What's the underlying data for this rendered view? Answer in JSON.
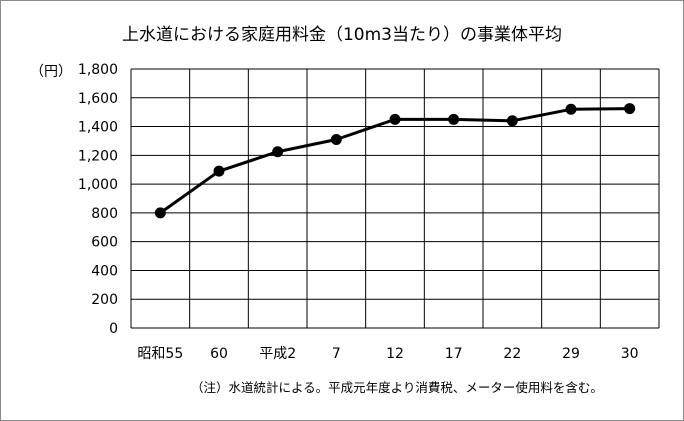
{
  "chart_data": {
    "type": "line",
    "title": "上水道における家庭用料金（10m3当たり）の事業体平均",
    "unit_label": "（円）",
    "categories": [
      "昭和55",
      "60",
      "平成2",
      "7",
      "12",
      "17",
      "22",
      "29",
      "30"
    ],
    "series": [
      {
        "values": [
          800,
          1090,
          1225,
          1310,
          1450,
          1450,
          1440,
          1520,
          1525
        ]
      }
    ],
    "ylim": [
      0,
      1800
    ],
    "ytick_values": [
      0,
      200,
      400,
      600,
      800,
      1000,
      1200,
      1400,
      1600,
      1800
    ],
    "ytick_labels": [
      "0",
      "200",
      "400",
      "600",
      "800",
      "1,000",
      "1,200",
      "1,400",
      "1,600",
      "1,800"
    ],
    "grid": true,
    "line_color": "#000000",
    "grid_color": "#000000",
    "note": "（注）水道統計による。平成元年度より消費税、メーター使用料を含む。"
  }
}
